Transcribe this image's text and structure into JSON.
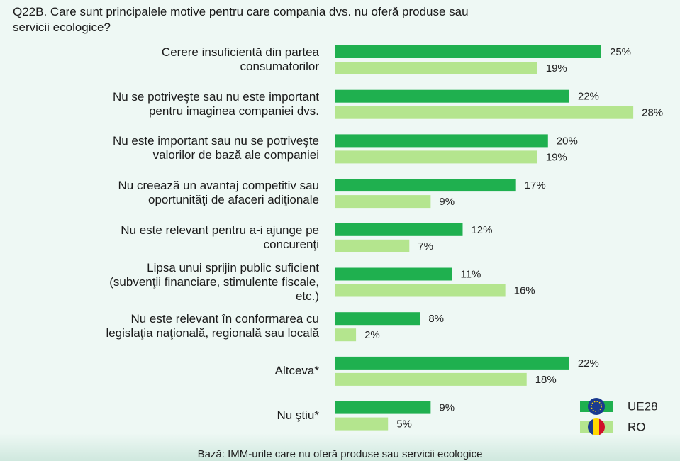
{
  "chart_data": {
    "type": "bar",
    "orientation": "horizontal",
    "title": "Q22B. Care sunt principalele motive pentru care compania dvs. nu oferă produse sau\nservicii ecologice?",
    "categories": [
      "Cerere insuficientă din partea\nconsumatorilor",
      "Nu se potriveşte sau nu este important\npentru imaginea companiei dvs.",
      "Nu este important sau nu se potriveşte\nvalorilor de bază ale companiei",
      "Nu creează un avantaj competitiv sau\noportunităţi de afaceri adiţionale",
      "Nu este relevant pentru a-i ajunge pe\nconcurenţi",
      "Lipsa unui sprijin public suficient\n(subvenţii financiare, stimulente fiscale,\netc.)",
      "Nu este relevant în conformarea cu\nlegislaţia naţională, regională sau locală",
      "Altceva*",
      "Nu ştiu*"
    ],
    "series": [
      {
        "name": "UE28",
        "color": "#1fb04f",
        "values": [
          25,
          22,
          20,
          17,
          12,
          11,
          8,
          22,
          9
        ],
        "value_labels": [
          "25%",
          "22%",
          "20%",
          "17%",
          "12%",
          "11%",
          "8%",
          "22%",
          "9%"
        ]
      },
      {
        "name": "RO",
        "color": "#b4e58e",
        "values": [
          19,
          28,
          19,
          9,
          7,
          16,
          2,
          18,
          5
        ],
        "value_labels": [
          "19%",
          "28%",
          "19%",
          "9%",
          "7%",
          "16%",
          "2%",
          "18%",
          "5%"
        ]
      }
    ],
    "footnote": "Bază: IMM-urile care nu oferă produse sau servicii ecologice",
    "legend": "bottom-right"
  }
}
